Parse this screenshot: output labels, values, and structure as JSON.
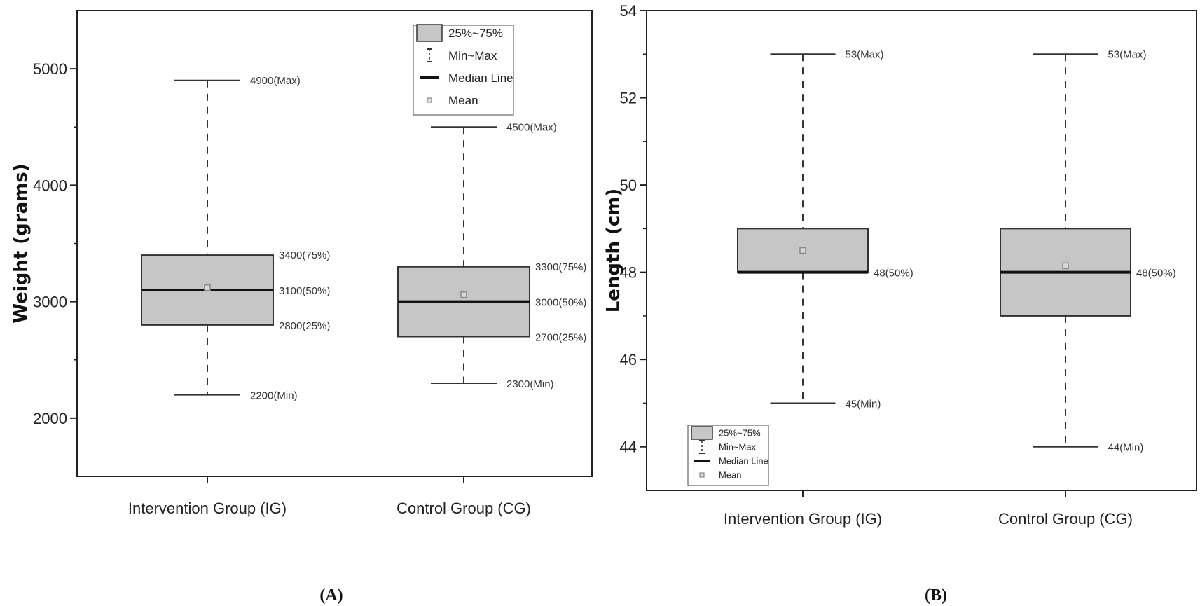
{
  "chart_data": [
    {
      "type": "box",
      "panel_label": "(A)",
      "ylabel": "Weight (grams)",
      "ylim": [
        1500,
        5500
      ],
      "yticks": [
        "2000",
        "3000",
        "4000",
        "5000"
      ],
      "categories": [
        "Intervention Group (IG)",
        "Control Group (CG)"
      ],
      "boxes": [
        {
          "min": 2200,
          "q1": 2800,
          "median": 3100,
          "q3": 3400,
          "max": 4900,
          "mean": 3120,
          "labels": {
            "max": "4900(Max)",
            "q3": "3400(75%)",
            "median": "3100(50%)",
            "q1": "2800(25%)",
            "min": "2200(Min)"
          }
        },
        {
          "min": 2300,
          "q1": 2700,
          "median": 3000,
          "q3": 3300,
          "max": 4500,
          "mean": 3060,
          "labels": {
            "max": "4500(Max)",
            "q3": "3300(75%)",
            "median": "3000(50%)",
            "q1": "2700(25%)",
            "min": "2300(Min)"
          }
        }
      ],
      "legend": {
        "position": "top-right",
        "items": [
          "25%~75%",
          "Min~Max",
          "Median Line",
          "Mean"
        ]
      },
      "grid": false
    },
    {
      "type": "box",
      "panel_label": "(B)",
      "ylabel": "Length (cm)",
      "ylim": [
        43,
        54
      ],
      "yticks": [
        "44",
        "46",
        "48",
        "50",
        "52",
        "54"
      ],
      "categories": [
        "Intervention Group (IG)",
        "Control Group (CG)"
      ],
      "boxes": [
        {
          "min": 45,
          "q1": 48,
          "median": 48,
          "q3": 49,
          "max": 53,
          "mean": 48.5,
          "labels": {
            "max": "53(Max)",
            "median": "48(50%)",
            "min": "45(Min)"
          }
        },
        {
          "min": 44,
          "q1": 47,
          "median": 48,
          "q3": 49,
          "max": 53,
          "mean": 48.15,
          "labels": {
            "max": "53(Max)",
            "median": "48(50%)",
            "min": "44(Min)"
          }
        }
      ],
      "legend": {
        "position": "bottom-left",
        "items": [
          "25%~75%",
          "Min~Max",
          "Median Line",
          "Mean"
        ]
      },
      "grid": false
    }
  ],
  "colors": {
    "box_fill": "#c6c6c6",
    "box_stroke": "#333333",
    "median": "#111111",
    "whisker": "#333333",
    "mean_marker": "#888888"
  }
}
